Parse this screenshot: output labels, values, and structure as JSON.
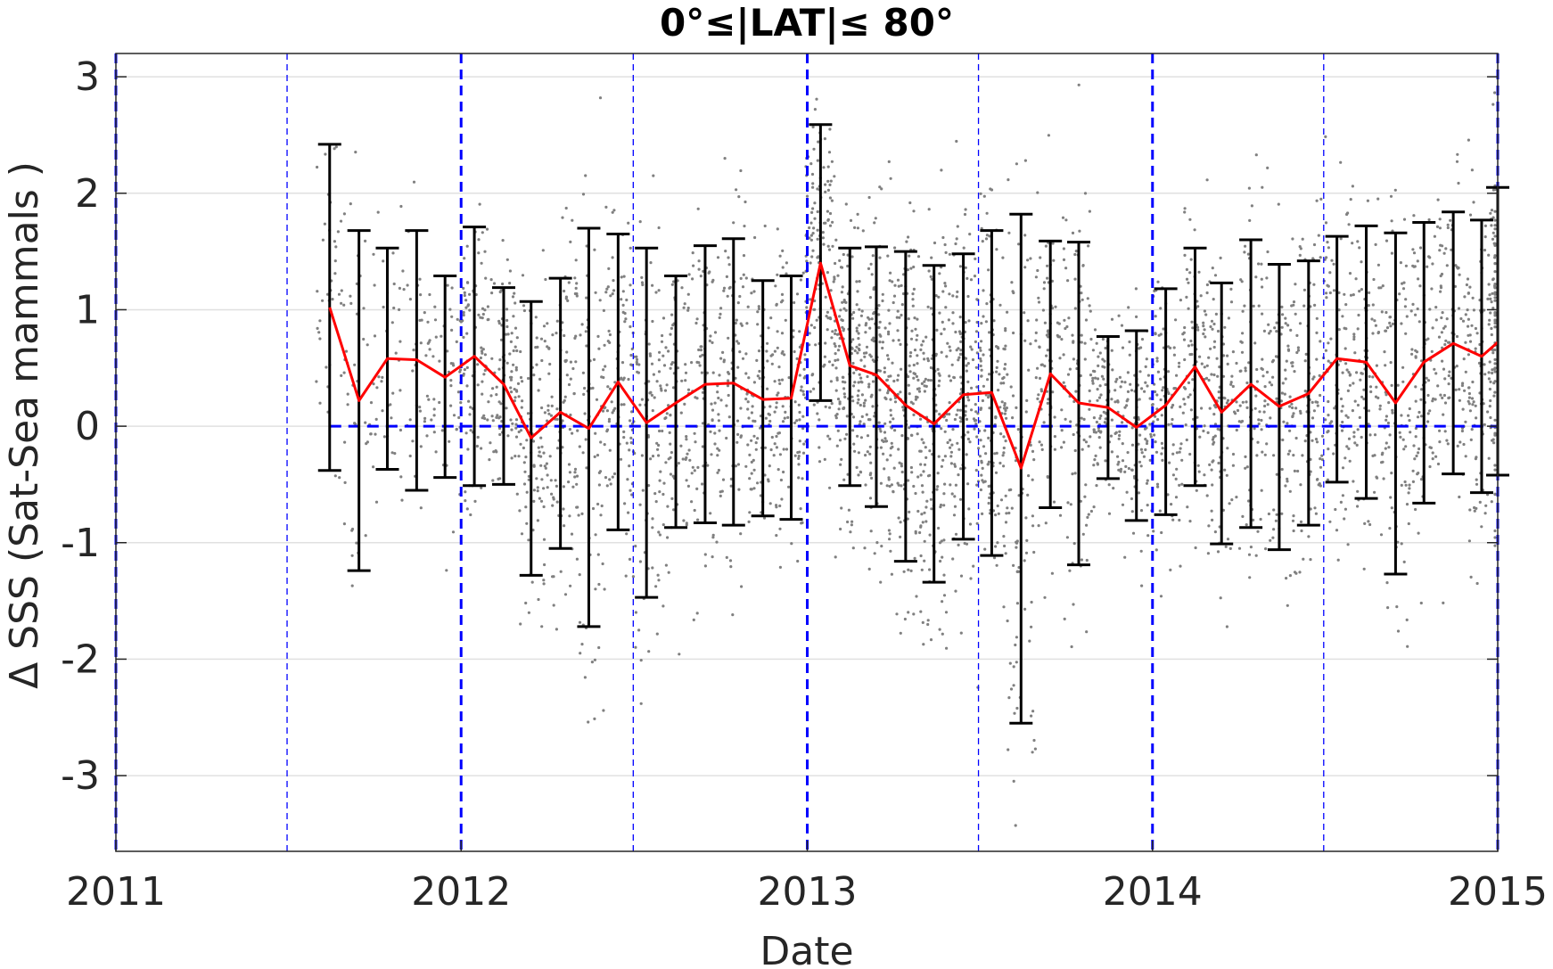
{
  "chart_data": {
    "type": "line",
    "title": "0°≤|LAT|≤ 80°",
    "xlabel": "Date",
    "ylabel": "Δ SSS (Sat-Sea mammals )",
    "xlim": [
      "2011-01-01",
      "2015-01-01"
    ],
    "ylim": [
      -3.65,
      3.2
    ],
    "x_ticks": [
      "2011",
      "2012",
      "2013",
      "2014",
      "2015"
    ],
    "y_ticks": [
      -3,
      -2,
      -1,
      0,
      1,
      2,
      3
    ],
    "y_tick_labels": [
      "-3",
      "-2",
      "-1",
      "0",
      "1",
      "2",
      "3"
    ],
    "grid": true,
    "legend": "none",
    "colors": {
      "mean_line": "#ff0000",
      "error_bars": "#000000",
      "reference_lines": "#0000ff",
      "scatter": "#808080",
      "grid": "#e0e0e0"
    },
    "vertical_reference_lines": {
      "year_boundaries": [
        "2011-01-01",
        "2012-01-01",
        "2013-01-01",
        "2014-01-01",
        "2015-01-01"
      ],
      "mid_year": [
        "2011-07-01",
        "2012-07-01",
        "2013-07-01",
        "2014-07-01"
      ]
    },
    "zero_reference_line": {
      "y": 0,
      "x_from": "2011-08-15",
      "x_to": "2015-01-01"
    },
    "series": [
      {
        "kind": "monthly-mean-with-error-bars",
        "dates": [
          "2011-08-15",
          "2011-09-15",
          "2011-10-15",
          "2011-11-15",
          "2011-12-15",
          "2012-01-15",
          "2012-02-15",
          "2012-03-15",
          "2012-04-15",
          "2012-05-15",
          "2012-06-15",
          "2012-07-15",
          "2012-08-15",
          "2012-09-15",
          "2012-10-15",
          "2012-11-15",
          "2012-12-15",
          "2013-01-15",
          "2013-02-15",
          "2013-03-15",
          "2013-04-15",
          "2013-05-15",
          "2013-06-15",
          "2013-07-15",
          "2013-08-15",
          "2013-09-15",
          "2013-10-15",
          "2013-11-15",
          "2013-12-15",
          "2014-01-15",
          "2014-02-15",
          "2014-03-15",
          "2014-04-15",
          "2014-05-15",
          "2014-06-15",
          "2014-07-15",
          "2014-08-15",
          "2014-09-15",
          "2014-10-15",
          "2014-11-15",
          "2014-12-15",
          "2015-01-01"
        ],
        "mean": [
          1.02,
          0.22,
          0.58,
          0.57,
          0.42,
          0.6,
          0.36,
          -0.1,
          0.12,
          -0.02,
          0.38,
          0.03,
          0.2,
          0.36,
          0.37,
          0.23,
          0.24,
          1.4,
          0.52,
          0.44,
          0.18,
          0.02,
          0.27,
          0.29,
          -0.36,
          0.45,
          0.2,
          0.16,
          -0.01,
          0.18,
          0.51,
          0.12,
          0.36,
          0.17,
          0.28,
          0.58,
          0.55,
          0.2,
          0.55,
          0.71,
          0.6,
          0.72
        ],
        "lower": [
          -0.38,
          -1.24,
          -0.37,
          -0.55,
          -0.44,
          -0.51,
          -0.5,
          -1.28,
          -1.05,
          -1.72,
          -0.89,
          -1.47,
          -0.87,
          -0.83,
          -0.85,
          -0.77,
          -0.8,
          0.22,
          -0.51,
          -0.69,
          -1.16,
          -1.34,
          -0.97,
          -1.11,
          -2.55,
          -0.7,
          -1.19,
          -0.45,
          -0.81,
          -0.76,
          -0.51,
          -1.01,
          -0.87,
          -1.06,
          -0.85,
          -0.48,
          -0.62,
          -1.27,
          -0.66,
          -0.41,
          -0.57,
          -0.42
        ],
        "upper": [
          2.42,
          1.68,
          1.53,
          1.68,
          1.29,
          1.71,
          1.19,
          1.07,
          1.27,
          1.7,
          1.65,
          1.53,
          1.29,
          1.55,
          1.61,
          1.25,
          1.29,
          2.59,
          1.53,
          1.54,
          1.5,
          1.38,
          1.48,
          1.68,
          1.82,
          1.59,
          1.58,
          0.77,
          0.82,
          1.18,
          1.53,
          1.23,
          1.6,
          1.39,
          1.42,
          1.63,
          1.72,
          1.66,
          1.75,
          1.84,
          1.77,
          2.05
        ]
      }
    ]
  }
}
